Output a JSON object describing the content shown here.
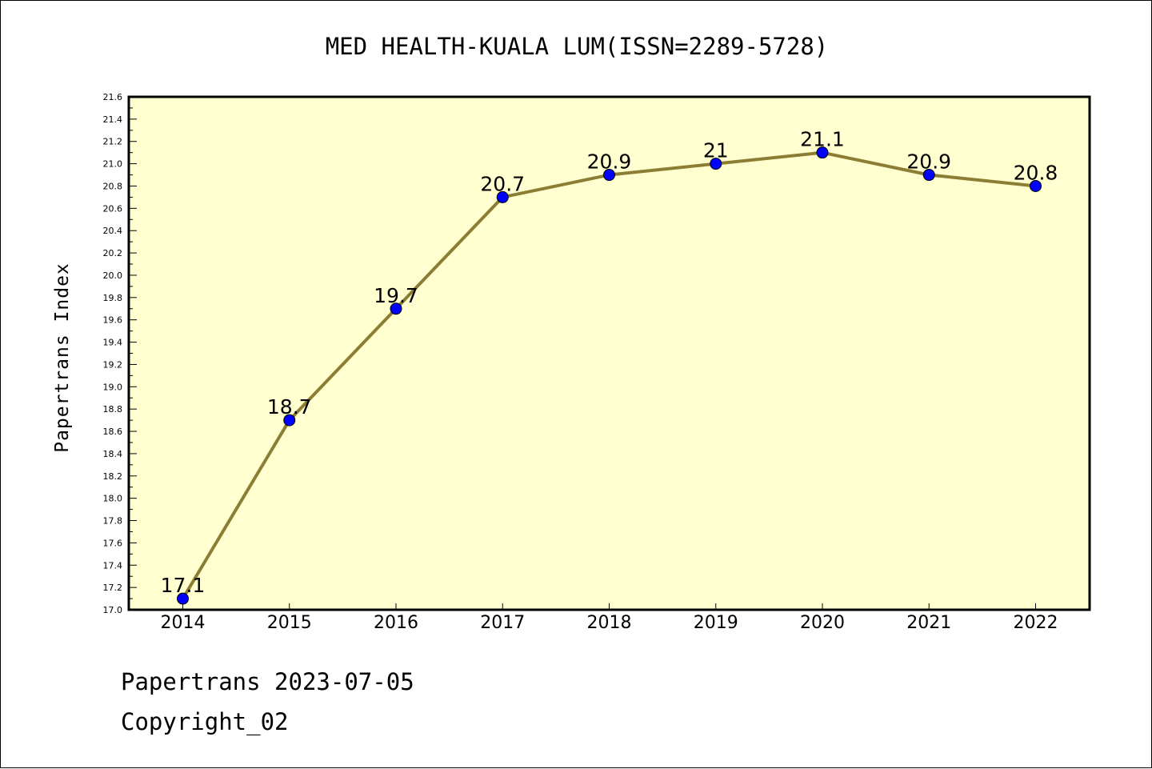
{
  "chart_data": {
    "type": "line",
    "title": "MED HEALTH-KUALA LUM(ISSN=2289-5728)",
    "xlabel": "",
    "ylabel": "Papertrans Index",
    "categories": [
      "2014",
      "2015",
      "2016",
      "2017",
      "2018",
      "2019",
      "2020",
      "2021",
      "2022"
    ],
    "series": [
      {
        "name": "Papertrans Index",
        "values": [
          17.1,
          18.7,
          19.7,
          20.7,
          20.9,
          21.0,
          21.1,
          20.9,
          20.8
        ],
        "labels": [
          "17.1",
          "18.7",
          "19.7",
          "20.7",
          "20.9",
          "21",
          "21.1",
          "20.9",
          "20.8"
        ]
      }
    ],
    "ylim": [
      17.0,
      21.6
    ],
    "ytick_step": 0.2,
    "grid": false,
    "legend": "none"
  },
  "colors": {
    "plot_background": "#ffffd0",
    "line": "#8b7d33",
    "marker": "#0000ff",
    "axis": "#000000"
  },
  "footer": {
    "line1": "Papertrans 2023-07-05",
    "line2": "Copyright_02"
  }
}
